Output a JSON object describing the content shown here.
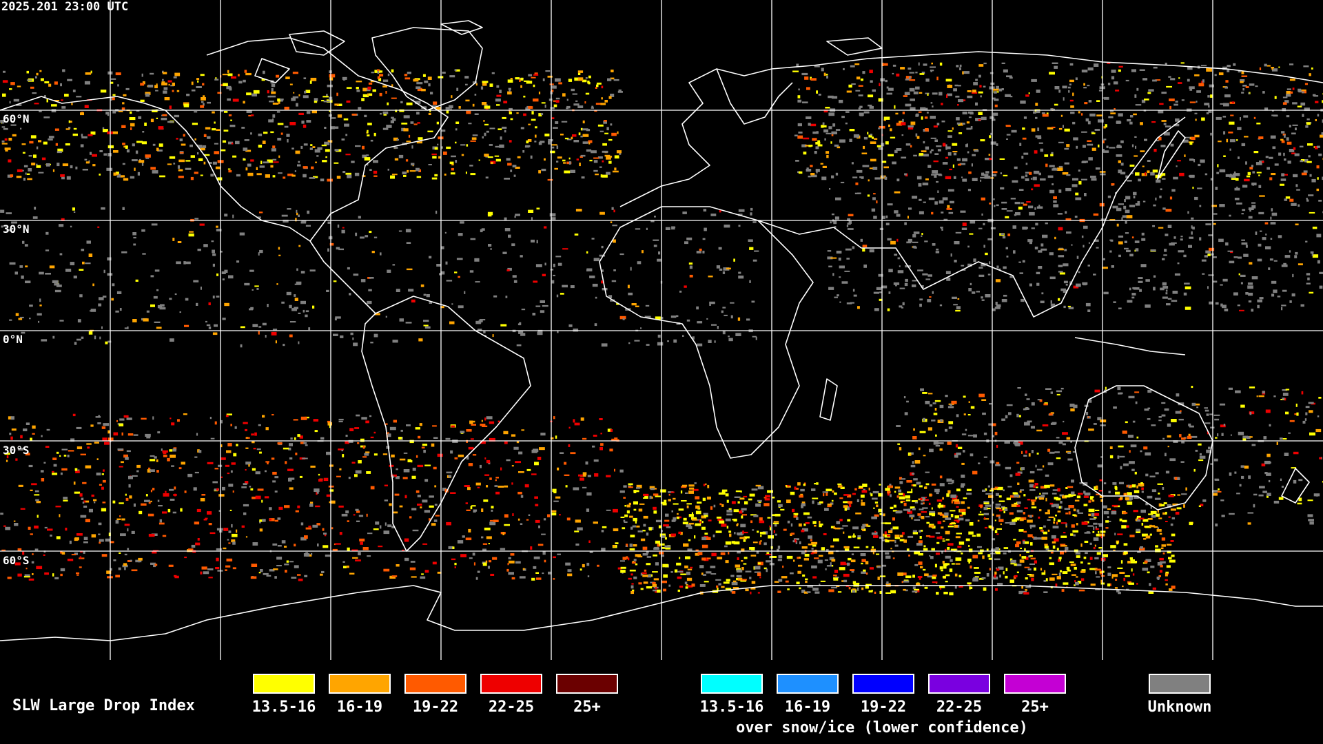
{
  "timestamp": "2025.201 23:00 UTC",
  "lat_labels": [
    "60°N",
    "30°N",
    "0°N",
    "30°S",
    "60°S"
  ],
  "legend": {
    "title": "SLW Large Drop Index",
    "standard": [
      {
        "label": "13.5-16",
        "color": "#ffff00"
      },
      {
        "label": "16-19",
        "color": "#ffa500"
      },
      {
        "label": "19-22",
        "color": "#ff5a00"
      },
      {
        "label": "22-25",
        "color": "#ee0000"
      },
      {
        "label": "25+",
        "color": "#6b0000"
      }
    ],
    "snow_ice": [
      {
        "label": "13.5-16",
        "color": "#00ffff"
      },
      {
        "label": "16-19",
        "color": "#1e90ff"
      },
      {
        "label": "19-22",
        "color": "#0000ff"
      },
      {
        "label": "22-25",
        "color": "#7a00e0"
      },
      {
        "label": "25+",
        "color": "#c400d4"
      }
    ],
    "snow_note": "over snow/ice (lower confidence)",
    "unknown": {
      "label": "Unknown",
      "color": "#808080"
    }
  }
}
